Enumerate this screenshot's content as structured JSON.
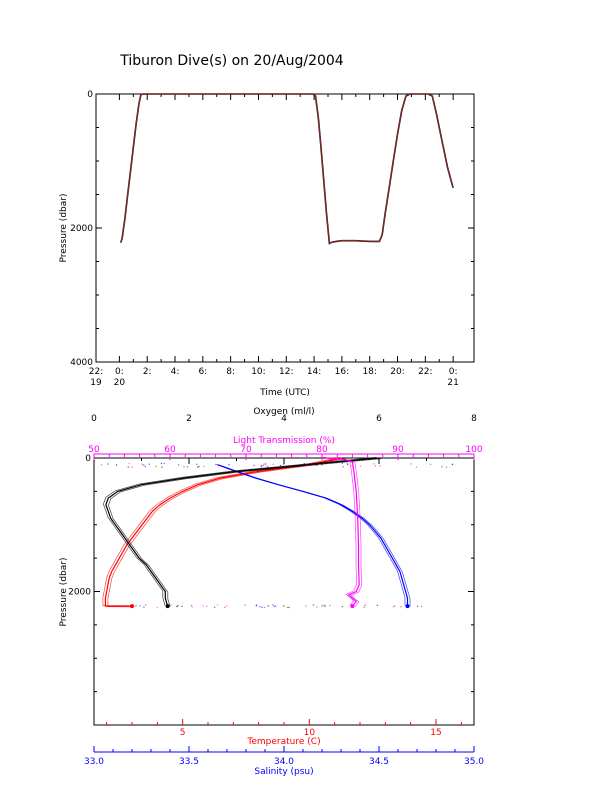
{
  "title": "Tiburon Dive(s) on 20/Aug/2004",
  "colors": {
    "axis": "#000000",
    "dive_line": "#b03030",
    "temperature": "#ff0000",
    "salinity": "#0000ff",
    "oxygen": "#000000",
    "light": "#ff00ff"
  },
  "chart_data": [
    {
      "type": "line",
      "xlabel": "Time (UTC)",
      "ylabel": "Pressure (dbar)",
      "xlim": [
        -1.683,
        25.5
      ],
      "ylim": [
        4000,
        0
      ],
      "x_ticks": [
        {
          "v": -1.683,
          "l1": "22:",
          "l2": "19"
        },
        {
          "v": 0,
          "l1": "0:",
          "l2": "20"
        },
        {
          "v": 2,
          "l1": "2:",
          "l2": ""
        },
        {
          "v": 4,
          "l1": "4:",
          "l2": ""
        },
        {
          "v": 6,
          "l1": "6:",
          "l2": ""
        },
        {
          "v": 8,
          "l1": "8:",
          "l2": ""
        },
        {
          "v": 10,
          "l1": "10:",
          "l2": ""
        },
        {
          "v": 12,
          "l1": "12:",
          "l2": ""
        },
        {
          "v": 14,
          "l1": "14:",
          "l2": ""
        },
        {
          "v": 16,
          "l1": "16:",
          "l2": ""
        },
        {
          "v": 18,
          "l1": "18:",
          "l2": ""
        },
        {
          "v": 20,
          "l1": "20:",
          "l2": ""
        },
        {
          "v": 22,
          "l1": "22:",
          "l2": ""
        },
        {
          "v": 24,
          "l1": "0:",
          "l2": "21"
        }
      ],
      "y_ticks": [
        0,
        2000,
        4000
      ],
      "series": [
        {
          "x": [
            0.1,
            0.2,
            0.4,
            0.6,
            0.8,
            1.0,
            1.2,
            1.4,
            1.55,
            2.0,
            6.0,
            10.0,
            13.9,
            14.1,
            14.3,
            14.5,
            14.7,
            14.9,
            15.1,
            15.3,
            15.6,
            16.0,
            17.0,
            18.0,
            18.7,
            18.9,
            19.1,
            19.4,
            19.7,
            20.0,
            20.3,
            20.6,
            20.9,
            21.5,
            22.2,
            22.5,
            22.8,
            23.2,
            23.6,
            24.0
          ],
          "y": [
            2220,
            2150,
            1850,
            1500,
            1150,
            800,
            450,
            150,
            5,
            0,
            0,
            0,
            0,
            30,
            350,
            800,
            1300,
            1800,
            2230,
            2210,
            2200,
            2190,
            2190,
            2200,
            2200,
            2100,
            1800,
            1400,
            1000,
            600,
            250,
            30,
            0,
            0,
            0,
            30,
            300,
            700,
            1100,
            1400
          ]
        }
      ]
    },
    {
      "type": "scatter",
      "ylabel": "Pressure (dbar)",
      "ylim": [
        4000,
        0
      ],
      "y_ticks": [
        0,
        2000
      ],
      "axes": [
        {
          "label": "Oxygen (ml/l)",
          "position": "top",
          "range": [
            0,
            8
          ],
          "ticks": [
            0,
            2,
            4,
            6,
            8
          ]
        },
        {
          "label": "Light Transmission (%)",
          "position": "top",
          "range": [
            50,
            100
          ],
          "ticks": [
            50,
            60,
            70,
            80,
            90,
            100
          ]
        },
        {
          "label": "Temperature (C)",
          "position": "bottom",
          "range": [
            1.5,
            16.5
          ],
          "ticks": [
            5,
            10,
            15
          ]
        },
        {
          "label": "Salinity (psu)",
          "position": "bottom",
          "range": [
            33.0,
            35.0
          ],
          "ticks": [
            "33.0",
            "33.5",
            "34.0",
            "34.5",
            "35.0"
          ]
        }
      ],
      "series": [
        {
          "axis": "Temperature (C)",
          "values": [
            [
              11.3,
              0
            ],
            [
              10.0,
              100
            ],
            [
              8.0,
              200
            ],
            [
              6.5,
              300
            ],
            [
              5.6,
              400
            ],
            [
              5.0,
              500
            ],
            [
              4.5,
              600
            ],
            [
              4.1,
              700
            ],
            [
              3.8,
              800
            ],
            [
              3.6,
              900
            ],
            [
              3.4,
              1000
            ],
            [
              3.2,
              1100
            ],
            [
              3.0,
              1200
            ],
            [
              2.8,
              1300
            ],
            [
              2.65,
              1400
            ],
            [
              2.5,
              1500
            ],
            [
              2.35,
              1600
            ],
            [
              2.2,
              1700
            ],
            [
              2.1,
              1800
            ],
            [
              2.05,
              1900
            ],
            [
              2.0,
              2000
            ],
            [
              1.95,
              2100
            ],
            [
              1.95,
              2220
            ],
            [
              3.0,
              2220
            ]
          ]
        },
        {
          "axis": "Salinity (psu)",
          "values": [
            [
              33.65,
              100
            ],
            [
              33.75,
              200
            ],
            [
              33.85,
              300
            ],
            [
              33.97,
              400
            ],
            [
              34.1,
              500
            ],
            [
              34.22,
              600
            ],
            [
              34.3,
              700
            ],
            [
              34.36,
              800
            ],
            [
              34.41,
              900
            ],
            [
              34.45,
              1000
            ],
            [
              34.48,
              1100
            ],
            [
              34.51,
              1200
            ],
            [
              34.53,
              1300
            ],
            [
              34.55,
              1400
            ],
            [
              34.57,
              1500
            ],
            [
              34.59,
              1600
            ],
            [
              34.61,
              1700
            ],
            [
              34.62,
              1800
            ],
            [
              34.63,
              1900
            ],
            [
              34.64,
              2000
            ],
            [
              34.65,
              2100
            ],
            [
              34.65,
              2220
            ]
          ]
        },
        {
          "axis": "Oxygen (ml/l)",
          "values": [
            [
              6.0,
              0
            ],
            [
              4.5,
              100
            ],
            [
              3.0,
              200
            ],
            [
              1.9,
              300
            ],
            [
              1.0,
              400
            ],
            [
              0.5,
              500
            ],
            [
              0.3,
              600
            ],
            [
              0.25,
              700
            ],
            [
              0.3,
              800
            ],
            [
              0.35,
              900
            ],
            [
              0.45,
              1000
            ],
            [
              0.55,
              1100
            ],
            [
              0.65,
              1200
            ],
            [
              0.75,
              1300
            ],
            [
              0.85,
              1400
            ],
            [
              0.95,
              1500
            ],
            [
              1.1,
              1600
            ],
            [
              1.2,
              1700
            ],
            [
              1.3,
              1800
            ],
            [
              1.4,
              1900
            ],
            [
              1.5,
              2000
            ],
            [
              1.5,
              2100
            ],
            [
              1.55,
              2220
            ]
          ]
        },
        {
          "axis": "Light Transmission (%)",
          "values": [
            [
              80.5,
              0
            ],
            [
              83.0,
              20
            ],
            [
              84.0,
              60
            ],
            [
              84.2,
              200
            ],
            [
              84.5,
              500
            ],
            [
              84.7,
              900
            ],
            [
              84.8,
              1300
            ],
            [
              84.8,
              1600
            ],
            [
              84.9,
              1900
            ],
            [
              84.5,
              2000
            ],
            [
              83.5,
              2050
            ],
            [
              84.5,
              2150
            ],
            [
              84.0,
              2220
            ]
          ]
        }
      ]
    }
  ]
}
